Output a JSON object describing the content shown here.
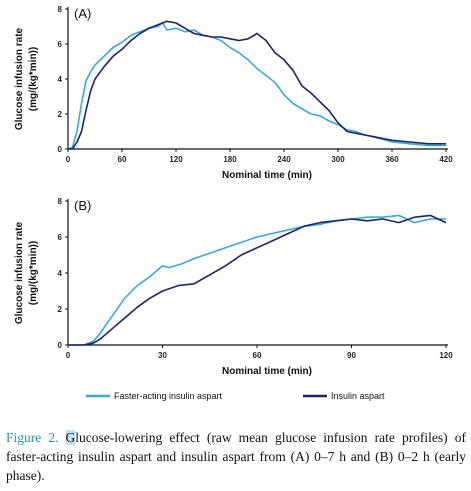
{
  "figure": {
    "caption_label": "Figure 2.",
    "caption_highlight": "G",
    "caption_text": "lucose-lowering effect (raw mean glucose infusion rate profiles) of faster-acting insulin aspart and insulin aspart from (A) 0–7 h and (B) 0–2 h (early phase).",
    "legend": [
      {
        "label": "Faster-acting insulin aspart",
        "color": "#3aa8dc"
      },
      {
        "label": "Insulin aspart",
        "color": "#1c2466"
      }
    ]
  },
  "chart_data": [
    {
      "type": "line",
      "panel_label": "(A)",
      "xlabel": "Nominal time (min)",
      "ylabel_line1": "Glucose infusion rate",
      "ylabel_line2": "(mg/(kg*min))",
      "xlim": [
        0,
        420
      ],
      "ylim": [
        0,
        8
      ],
      "xticks": [
        0,
        60,
        120,
        180,
        240,
        300,
        360,
        420
      ],
      "yticks": [
        0,
        2,
        4,
        6,
        8
      ],
      "grid": false,
      "series": [
        {
          "name": "Faster-acting insulin aspart",
          "color": "#3aa8dc",
          "x": [
            0,
            5,
            10,
            15,
            20,
            25,
            30,
            40,
            50,
            60,
            70,
            80,
            90,
            100,
            105,
            110,
            120,
            130,
            140,
            150,
            160,
            170,
            180,
            190,
            200,
            210,
            220,
            230,
            240,
            250,
            260,
            270,
            280,
            290,
            300,
            310,
            320,
            330,
            340,
            360,
            380,
            400,
            420
          ],
          "y": [
            0,
            0.1,
            1.0,
            2.6,
            3.9,
            4.4,
            4.8,
            5.3,
            5.8,
            6.1,
            6.5,
            6.7,
            6.9,
            7.0,
            7.2,
            6.8,
            6.9,
            6.7,
            6.8,
            6.5,
            6.4,
            6.2,
            5.8,
            5.5,
            5.1,
            4.6,
            4.2,
            3.8,
            3.1,
            2.6,
            2.3,
            2.0,
            1.9,
            1.6,
            1.4,
            1.1,
            1.0,
            0.8,
            0.7,
            0.4,
            0.3,
            0.2,
            0.2
          ]
        },
        {
          "name": "Insulin aspart",
          "color": "#1c2466",
          "x": [
            0,
            5,
            10,
            15,
            20,
            25,
            30,
            40,
            50,
            60,
            70,
            80,
            90,
            100,
            110,
            120,
            130,
            140,
            150,
            160,
            170,
            180,
            190,
            200,
            210,
            220,
            230,
            240,
            250,
            260,
            270,
            280,
            290,
            300,
            310,
            320,
            330,
            340,
            360,
            380,
            400,
            420
          ],
          "y": [
            0,
            0,
            0.4,
            1.0,
            2.2,
            3.3,
            4.0,
            4.7,
            5.3,
            5.7,
            6.2,
            6.6,
            6.9,
            7.1,
            7.3,
            7.2,
            6.9,
            6.6,
            6.5,
            6.4,
            6.4,
            6.3,
            6.2,
            6.3,
            6.6,
            6.2,
            5.5,
            5.1,
            4.5,
            3.6,
            3.2,
            2.7,
            2.2,
            1.5,
            1.0,
            0.9,
            0.8,
            0.7,
            0.5,
            0.4,
            0.3,
            0.3
          ]
        }
      ]
    },
    {
      "type": "line",
      "panel_label": "(B)",
      "xlabel": "Nominal time (min)",
      "ylabel_line1": "Glucose infusion rate",
      "ylabel_line2": "(mg/(kg*min))",
      "xlim": [
        0,
        120
      ],
      "ylim": [
        0,
        8
      ],
      "xticks": [
        0,
        30,
        60,
        90,
        120
      ],
      "yticks": [
        0,
        2,
        4,
        6,
        8
      ],
      "grid": false,
      "series": [
        {
          "name": "Faster-acting insulin aspart",
          "color": "#3aa8dc",
          "x": [
            0,
            5,
            8,
            10,
            14,
            18,
            22,
            26,
            30,
            32,
            36,
            40,
            45,
            50,
            55,
            60,
            65,
            70,
            75,
            80,
            85,
            90,
            95,
            100,
            105,
            110,
            115,
            120
          ],
          "y": [
            0,
            0,
            0.2,
            0.6,
            1.6,
            2.6,
            3.3,
            3.8,
            4.4,
            4.3,
            4.5,
            4.8,
            5.1,
            5.4,
            5.7,
            6.0,
            6.2,
            6.4,
            6.6,
            6.7,
            6.9,
            7.0,
            7.1,
            7.1,
            7.2,
            6.8,
            7.0,
            7.0
          ]
        },
        {
          "name": "Insulin aspart",
          "color": "#1c2466",
          "x": [
            0,
            5,
            8,
            10,
            14,
            18,
            22,
            26,
            30,
            35,
            40,
            45,
            50,
            55,
            60,
            65,
            70,
            75,
            80,
            85,
            90,
            95,
            100,
            105,
            110,
            115,
            120
          ],
          "y": [
            0,
            0,
            0.1,
            0.3,
            0.9,
            1.5,
            2.1,
            2.6,
            3.0,
            3.3,
            3.4,
            3.9,
            4.4,
            5.0,
            5.4,
            5.8,
            6.2,
            6.6,
            6.8,
            6.9,
            7.0,
            6.9,
            7.0,
            6.8,
            7.1,
            7.2,
            6.8
          ]
        }
      ]
    }
  ]
}
